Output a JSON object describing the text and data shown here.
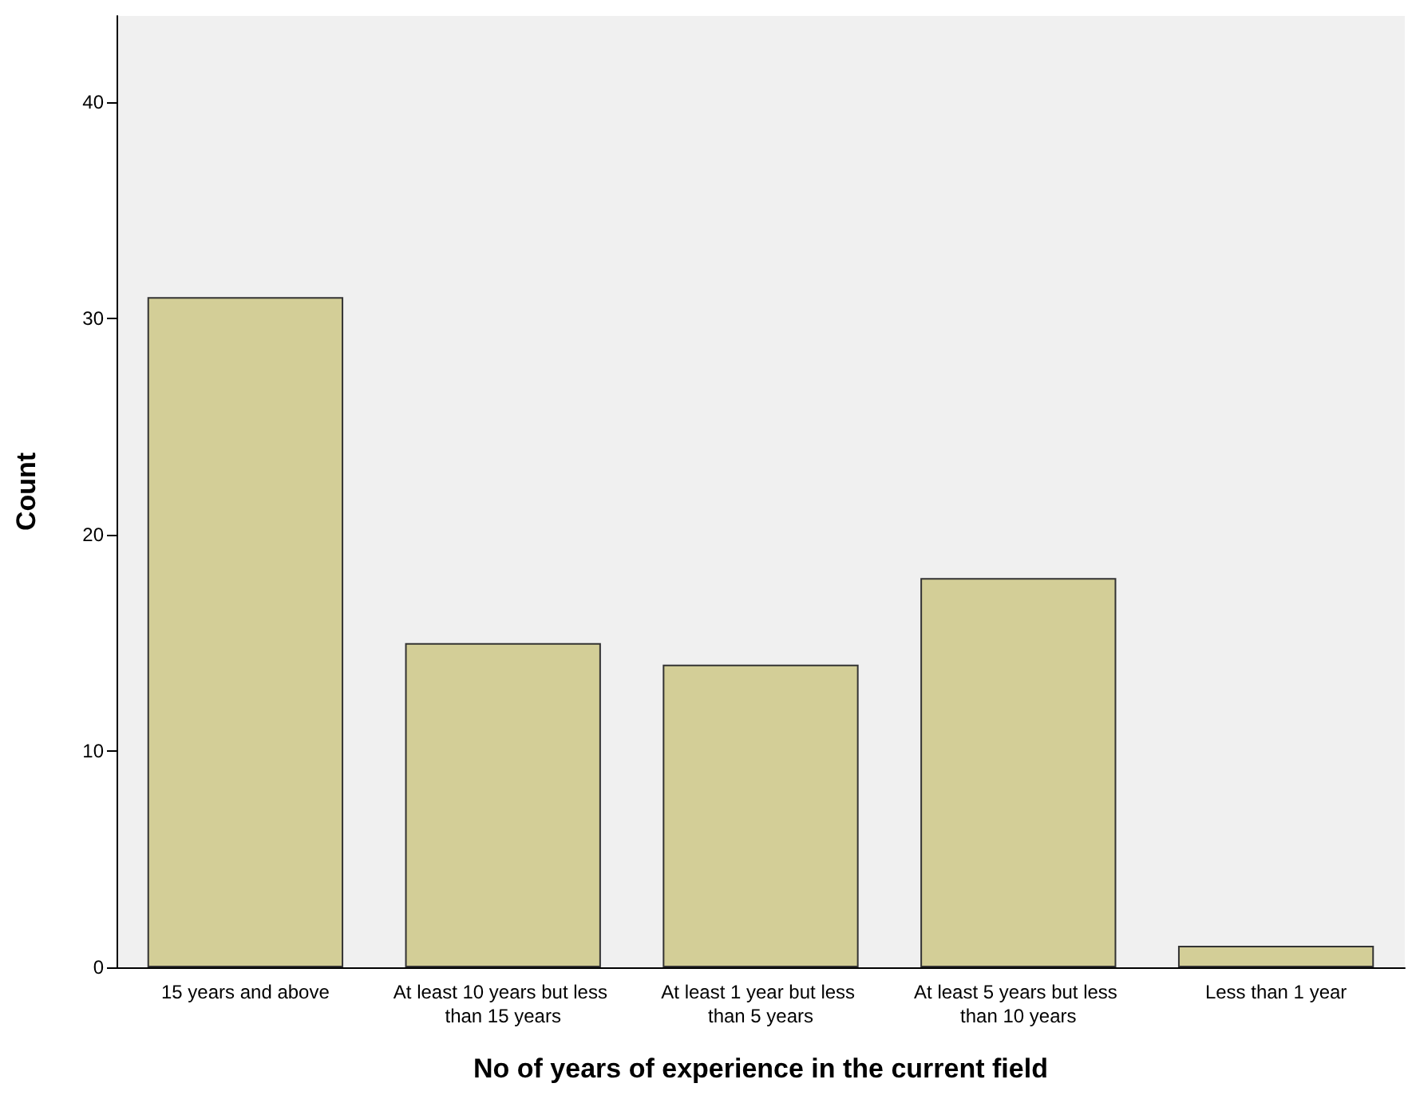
{
  "chart_data": {
    "type": "bar",
    "xlabel": "No of years of experience in the current field",
    "ylabel": "Count",
    "categories": [
      "15 years and above",
      "At least 10 years but less than 15 years",
      "At least 1 year but less than 5 years",
      "At least 5 years but less than 10 years",
      "Less than 1 year"
    ],
    "values": [
      31,
      15,
      14,
      18,
      1
    ],
    "color": "#d3ce97",
    "ylim": [
      0,
      44
    ],
    "yticks": [
      0,
      10,
      20,
      30,
      40
    ],
    "grid": false
  }
}
